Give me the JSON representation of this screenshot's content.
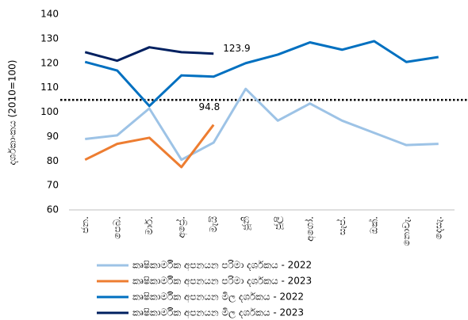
{
  "chart_data": {
    "type": "line",
    "y_label": "දර්ශකාංකය (2010=100)",
    "categories": [
      "ජන.",
      "පෙබ.",
      "මාර්.",
      "අප්‍රේ.",
      "මැයි",
      "ජූනි",
      "ජූලි",
      "අගෝ.",
      "සැප්.",
      "ඔක්.",
      "නොවැ.",
      "දෙසැ."
    ],
    "series": [
      {
        "name": "කෘෂිකාර්මික අපනයන පරිමා දර්ශකය - 2022",
        "color": "#9dc3e6",
        "values": [
          89,
          90.5,
          101.5,
          80.5,
          87.5,
          109.5,
          96.5,
          103.5,
          96.5,
          91.5,
          86.5,
          87
        ]
      },
      {
        "name": "කෘෂිකාර්මික අපනයන පරිමා දර්ශකය - 2023",
        "color": "#ed7d31",
        "values": [
          80.5,
          87,
          89.5,
          77.5,
          94.8,
          null,
          null,
          null,
          null,
          null,
          null,
          null
        ]
      },
      {
        "name": "කෘෂිකාර්මික අපනයන මිල දර්ශකය - 2022",
        "color": "#0070c0",
        "values": [
          120.5,
          117,
          102.5,
          115,
          114.5,
          120,
          123.5,
          128.5,
          125.5,
          129,
          120.5,
          122.5
        ]
      },
      {
        "name": "කෘෂිකාර්මික අපනයන මිල දර්ශකය - 2023",
        "color": "#002060",
        "values": [
          124.5,
          121,
          126.5,
          124.5,
          123.9,
          null,
          null,
          null,
          null,
          null,
          null,
          null
        ]
      }
    ],
    "reference_line": 105,
    "ylim": [
      60,
      140
    ],
    "yticks": [
      60,
      70,
      80,
      90,
      100,
      110,
      120,
      130,
      140
    ],
    "grid": false
  }
}
